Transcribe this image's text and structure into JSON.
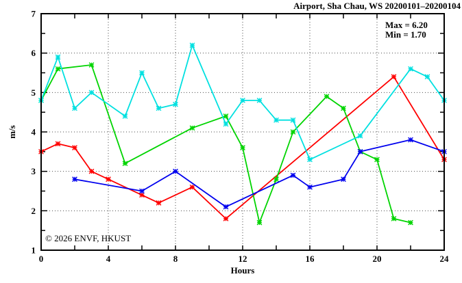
{
  "chart_data": {
    "type": "line",
    "title": "Airport, Sha Chau, WS 20200101–20200104",
    "xlabel": "Hours",
    "ylabel": "m/s",
    "annotations": {
      "max": "Max = 6.20",
      "min": "Min = 1.70"
    },
    "stats": {
      "max": 6.2,
      "min": 1.7
    },
    "watermark": "© 2026 ENVF, HKUST",
    "xlim": [
      0,
      24
    ],
    "ylim": [
      1,
      7
    ],
    "x_tick_labels": [
      0,
      4,
      8,
      12,
      16,
      20,
      24
    ],
    "x_minor_tick_step": 2,
    "y_tick_labels": [
      1,
      2,
      3,
      4,
      5,
      6,
      7
    ],
    "y_minor_tick_step": 0.5,
    "grid": "dotted",
    "legend_position": "none",
    "series": [
      {
        "name": "red",
        "color": "#ff0000",
        "points": [
          [
            0,
            3.5
          ],
          [
            1,
            3.7
          ],
          [
            2,
            3.6
          ],
          [
            3,
            3.0
          ],
          [
            4,
            2.8
          ],
          [
            6,
            2.4
          ],
          [
            7,
            2.2
          ],
          [
            9,
            2.6
          ],
          [
            11,
            1.8
          ],
          [
            21,
            5.4
          ],
          [
            24,
            3.3
          ]
        ]
      },
      {
        "name": "green",
        "color": "#00d400",
        "points": [
          [
            0,
            4.8
          ],
          [
            1,
            5.6
          ],
          [
            3,
            5.7
          ],
          [
            5,
            3.2
          ],
          [
            9,
            4.1
          ],
          [
            11,
            4.4
          ],
          [
            12,
            3.6
          ],
          [
            13,
            1.7
          ],
          [
            14,
            2.8
          ],
          [
            15,
            4.0
          ],
          [
            17,
            4.9
          ],
          [
            18,
            4.6
          ],
          [
            19,
            3.5
          ],
          [
            20,
            3.3
          ],
          [
            21,
            1.8
          ],
          [
            22,
            1.7
          ]
        ]
      },
      {
        "name": "blue",
        "color": "#0000ee",
        "points": [
          [
            2,
            2.8
          ],
          [
            6,
            2.5
          ],
          [
            8,
            3.0
          ],
          [
            11,
            2.1
          ],
          [
            15,
            2.9
          ],
          [
            16,
            2.6
          ],
          [
            18,
            2.8
          ],
          [
            19,
            3.5
          ],
          [
            22,
            3.8
          ],
          [
            24,
            3.5
          ]
        ]
      },
      {
        "name": "cyan",
        "color": "#00e0e0",
        "points": [
          [
            0,
            4.8
          ],
          [
            1,
            5.9
          ],
          [
            2,
            4.6
          ],
          [
            3,
            5.0
          ],
          [
            5,
            4.4
          ],
          [
            6,
            5.5
          ],
          [
            7,
            4.6
          ],
          [
            8,
            4.7
          ],
          [
            9,
            6.2
          ],
          [
            11,
            4.2
          ],
          [
            12,
            4.8
          ],
          [
            13,
            4.8
          ],
          [
            14,
            4.3
          ],
          [
            15,
            4.3
          ],
          [
            16,
            3.3
          ],
          [
            19,
            3.9
          ],
          [
            22,
            5.6
          ],
          [
            23,
            5.4
          ],
          [
            24,
            4.8
          ]
        ]
      }
    ]
  },
  "colors": {
    "axis": "#000000",
    "grid": "#4a4a4a",
    "watermark": "#d5d5d5",
    "text": "#000000"
  }
}
